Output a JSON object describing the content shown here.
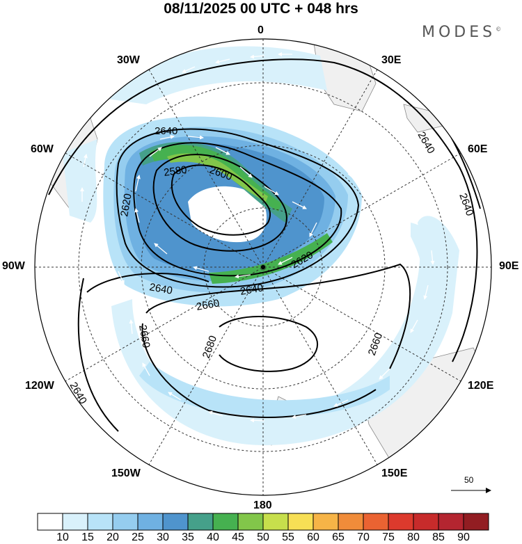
{
  "title": "08/11/2025  00 UTC  + 048 hrs",
  "brand": "MODES",
  "brand_mark": "©",
  "longitude_labels": {
    "lon_0": "0",
    "lon_30e": "30E",
    "lon_60e": "60E",
    "lon_90e": "90E",
    "lon_120e": "120E",
    "lon_150e": "150E",
    "lon_180": "180",
    "lon_150w": "150W",
    "lon_120w": "120W",
    "lon_90w": "90W",
    "lon_60w": "60W",
    "lon_30w": "30W"
  },
  "contour_labels": [
    "2640",
    "2580",
    "2600",
    "2620",
    "2640",
    "2620",
    "2640",
    "2660",
    "2660",
    "2680",
    "2660",
    "2640",
    "2640",
    "2640"
  ],
  "reference_vector": {
    "label": "50",
    "icon": "arrow-right-icon"
  },
  "colorbar": {
    "labels": [
      "10",
      "15",
      "20",
      "25",
      "30",
      "35",
      "40",
      "45",
      "50",
      "55",
      "60",
      "65",
      "70",
      "75",
      "80",
      "85",
      "90"
    ],
    "colors": [
      "#ffffff",
      "#d9f1fb",
      "#b8e3f8",
      "#95cdef",
      "#6fb1e2",
      "#4f94cd",
      "#45a08a",
      "#46b150",
      "#82c64a",
      "#c7df4c",
      "#f7df55",
      "#f6b447",
      "#f08c3a",
      "#ea6332",
      "#dc3a2d",
      "#c72b2b",
      "#b42530",
      "#921d22"
    ]
  },
  "chart_data": {
    "type": "polar-stereographic-map",
    "title": "08/11/2025  00 UTC  + 048 hrs",
    "projection_center": "South Pole",
    "fields": [
      "wind speed shading",
      "wind vectors",
      "geopotential height contours"
    ],
    "contour_values": [
      2580,
      2600,
      2620,
      2640,
      2660,
      2680
    ],
    "shading_levels": [
      10,
      15,
      20,
      25,
      30,
      35,
      40,
      45,
      50,
      55,
      60,
      65,
      70,
      75,
      80,
      85,
      90
    ],
    "reference_vector": 50
  }
}
